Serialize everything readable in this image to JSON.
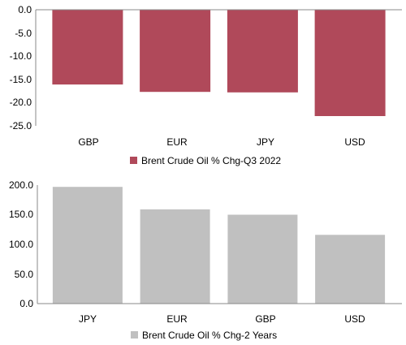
{
  "chart_data": [
    {
      "type": "bar",
      "categories": [
        "GBP",
        "EUR",
        "JPY",
        "USD"
      ],
      "series": [
        {
          "name": "Brent Crude Oil % Chg-Q3 2022",
          "values": [
            -16.1,
            -17.7,
            -17.8,
            -22.9
          ]
        }
      ],
      "yticks": [
        "0.0",
        "-5.0",
        "-10.0",
        "-15.0",
        "-20.0",
        "-25.0"
      ],
      "ylim": [
        -25,
        0
      ],
      "grid": false,
      "legend": "bottom",
      "color": "#b0495a"
    },
    {
      "type": "bar",
      "categories": [
        "JPY",
        "EUR",
        "GBP",
        "USD"
      ],
      "series": [
        {
          "name": "Brent Crude Oil % Chg-2 Years",
          "values": [
            197,
            159,
            150,
            116
          ]
        }
      ],
      "yticks": [
        "200.0",
        "150.0",
        "100.0",
        "50.0",
        "0.0"
      ],
      "ylim": [
        0,
        200
      ],
      "grid": false,
      "legend": "bottom",
      "color": "#c0c0c0"
    }
  ]
}
